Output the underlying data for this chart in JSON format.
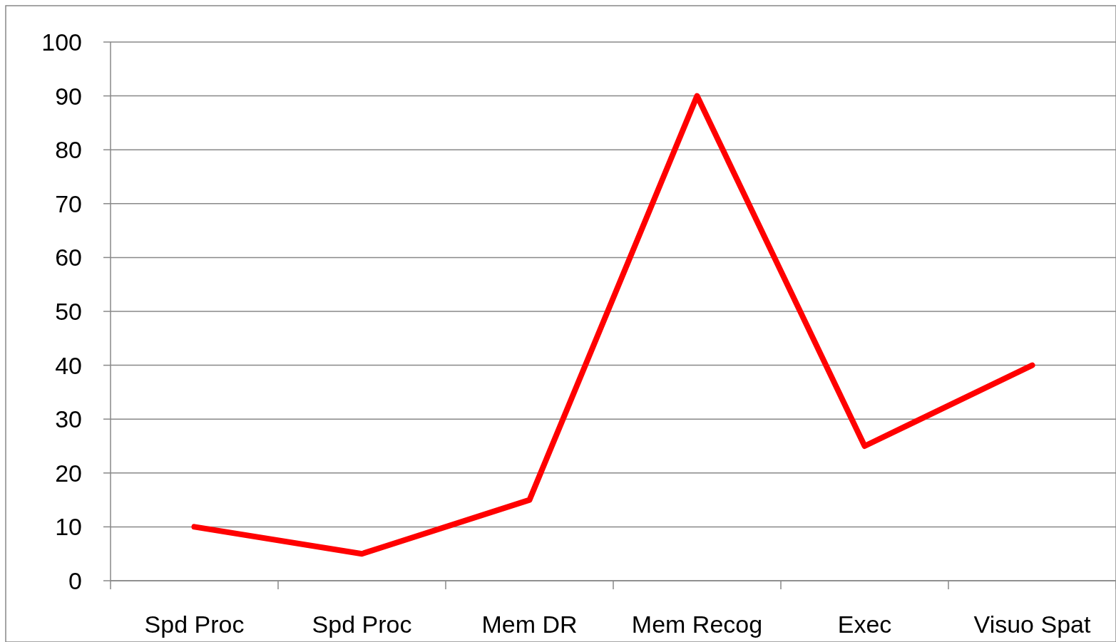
{
  "chart_data": {
    "type": "line",
    "categories": [
      "Spd Proc",
      "Spd Proc",
      "Mem DR",
      "Mem Recog",
      "Exec",
      "Visuo Spat"
    ],
    "series": [
      {
        "color": "#ff0000",
        "values": [
          10,
          5,
          15,
          90,
          25,
          40
        ]
      }
    ],
    "ylim": [
      0,
      100
    ],
    "yticks": [
      0,
      10,
      20,
      30,
      40,
      50,
      60,
      70,
      80,
      90,
      100
    ],
    "grid": "y",
    "marker": "none",
    "line_style": "solid"
  }
}
